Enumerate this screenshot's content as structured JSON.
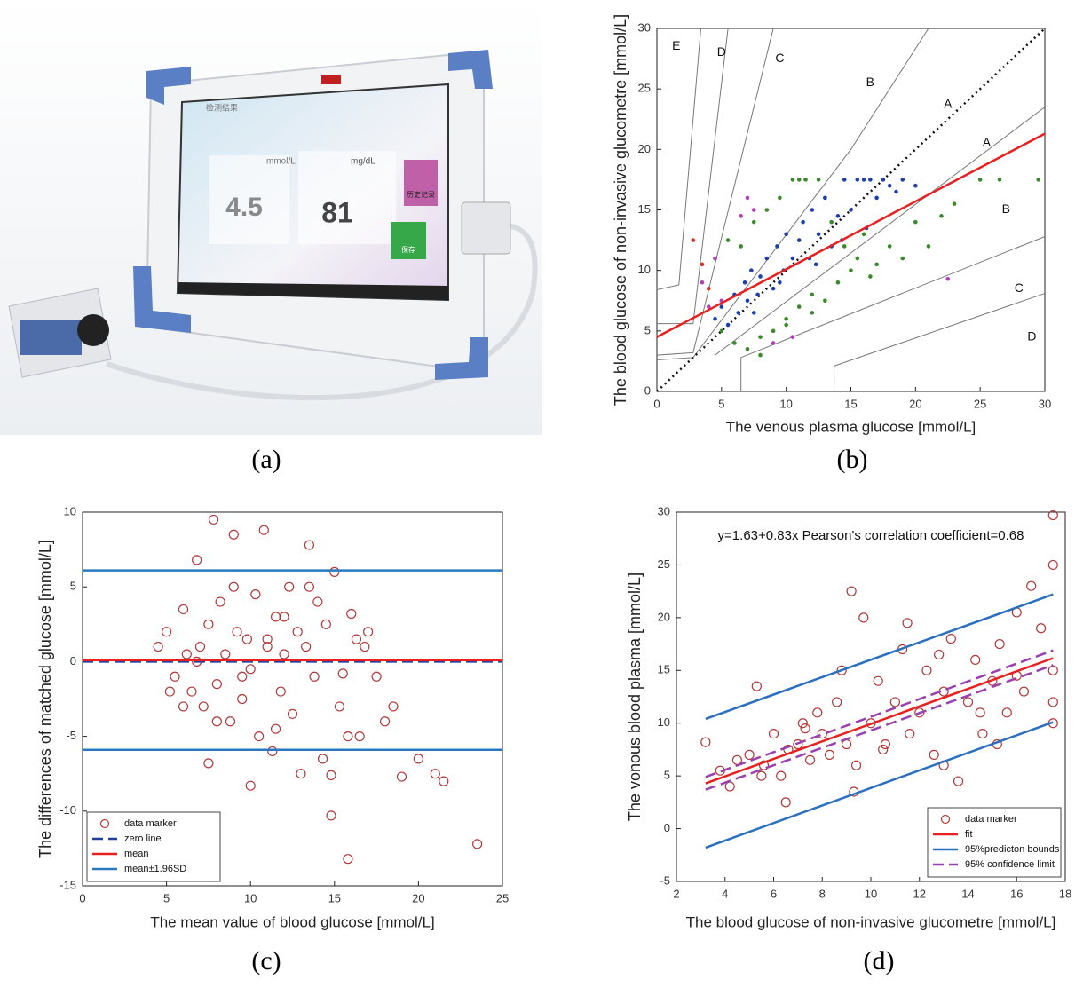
{
  "panel_labels": [
    "(a)",
    "(b)",
    "(c)",
    "(d)"
  ],
  "photo": {
    "screen_title": "检测结果",
    "unit_1": "mmol/L",
    "reading_1": "4.5",
    "unit_2": "mg/dL",
    "reading_2": "81",
    "button_1": "历史记录",
    "button_2": "保存"
  },
  "chart_data": [
    {
      "type": "scatter",
      "x_label": "The venous plasma glucose [mmol/L]",
      "y_label": "The blood glucose of non-invasive glucometre [mmol/L]",
      "xlim": [
        0,
        30
      ],
      "ylim": [
        0,
        30
      ],
      "xticks": [
        0,
        5,
        10,
        15,
        20,
        25,
        30
      ],
      "yticks": [
        0,
        5,
        10,
        15,
        20,
        25,
        30
      ],
      "zone_labels": [
        "E",
        "D",
        "C",
        "B",
        "A",
        "A",
        "B",
        "C",
        "D"
      ],
      "series": [
        {
          "kind": "line",
          "color": "#111111",
          "dash": "dotted",
          "x": [
            0,
            30
          ],
          "values": [
            0,
            30
          ]
        },
        {
          "kind": "scatter",
          "marker": "filled",
          "color": "#3a8a2a",
          "x": [
            4.5,
            5,
            5.5,
            6,
            6.5,
            7,
            7.5,
            8,
            8.5,
            9,
            9.5,
            10,
            10.5,
            11,
            11.5,
            12,
            12.5,
            13,
            13.5,
            14,
            14.5,
            15,
            15.5,
            16,
            16.5,
            17,
            18,
            19,
            20,
            21,
            22,
            23,
            25,
            26.5,
            29.5,
            8,
            10,
            11,
            12,
            13
          ],
          "values": [
            11,
            5,
            12.5,
            4,
            12,
            3.5,
            14,
            4.5,
            15,
            5,
            16,
            6,
            17.5,
            7,
            17.5,
            8,
            17.5,
            7.5,
            14,
            9,
            12,
            10,
            11,
            13,
            9.5,
            10.5,
            12,
            11,
            14,
            12,
            14.5,
            15.5,
            17.5,
            17.5,
            17.5,
            3,
            5.5,
            17.5,
            6.5,
            16
          ]
        },
        {
          "kind": "scatter",
          "marker": "filled",
          "color": "#1f3fb0",
          "x": [
            4.5,
            5,
            5.5,
            6,
            6.3,
            6.8,
            7,
            7.3,
            7.8,
            8,
            8.5,
            9,
            9.3,
            9.8,
            10,
            10.5,
            11,
            11.3,
            11.8,
            12,
            12.5,
            13,
            13.5,
            14,
            14.5,
            15,
            15.5,
            16,
            16.5,
            17,
            17.5,
            18,
            19,
            20,
            7.5,
            9.5,
            12.3,
            14.3,
            16.2,
            18.5
          ],
          "values": [
            6,
            7,
            5.5,
            8,
            6.5,
            9,
            7.5,
            10,
            8,
            9.5,
            11,
            8.5,
            12,
            10,
            13,
            11,
            12.5,
            14,
            11,
            15,
            13,
            16,
            12,
            14.5,
            17.5,
            15,
            17.5,
            17.5,
            17.5,
            16,
            17.5,
            17,
            17.5,
            17,
            6.5,
            9,
            10.5,
            12.5,
            13.5,
            16.5
          ]
        },
        {
          "kind": "scatter",
          "marker": "filled",
          "color": "#b040b8",
          "x": [
            3.5,
            4,
            4.5,
            5,
            6.5,
            7,
            7.5,
            9,
            10.5,
            22.5
          ],
          "values": [
            9,
            7,
            11,
            7.5,
            14.5,
            16,
            15,
            4,
            4.5,
            9.3
          ]
        },
        {
          "kind": "scatter",
          "marker": "filled",
          "color": "#e03020",
          "x": [
            2.8,
            3.5,
            4
          ],
          "values": [
            12.5,
            10.5,
            8.5
          ]
        },
        {
          "kind": "line",
          "color": "#e82020",
          "x": [
            0,
            30
          ],
          "values": [
            4.5,
            21.3
          ]
        }
      ]
    },
    {
      "type": "scatter",
      "x_label": "The mean value of blood glucose [mmol/L]",
      "y_label": "The differences of matched glucose [mmol/L]",
      "xlim": [
        0,
        25
      ],
      "ylim": [
        -15,
        10
      ],
      "xticks": [
        0,
        5,
        10,
        15,
        20,
        25
      ],
      "yticks": [
        -15,
        -10,
        -5,
        0,
        5,
        10
      ],
      "legend": "lower left",
      "series": [
        {
          "kind": "scatter",
          "marker": "open",
          "name": "data marker",
          "color": "#b23a3a",
          "x": [
            5,
            5.5,
            6,
            6.2,
            6.5,
            6.8,
            7,
            7.2,
            7.5,
            7.8,
            8,
            8.2,
            8.5,
            8.8,
            9,
            9.2,
            9.5,
            9.8,
            10,
            10.3,
            10.5,
            10.8,
            11,
            11.3,
            11.5,
            11.8,
            12,
            12.3,
            12.5,
            12.8,
            13,
            13.3,
            13.5,
            13.8,
            14,
            14.3,
            14.5,
            14.8,
            15,
            15.3,
            15.5,
            15.8,
            16,
            16.3,
            16.5,
            16.8,
            17,
            17.5,
            18,
            18.5,
            19,
            20,
            21,
            21.5,
            23.5,
            15.8,
            14.8,
            8,
            9,
            11.5,
            12,
            6,
            7.5,
            10,
            13.5,
            4.5,
            5.2,
            6.8,
            11,
            9.5
          ],
          "values": [
            2,
            -1,
            3.5,
            0.5,
            -2,
            6.8,
            1,
            -3,
            2.5,
            9.5,
            -1.5,
            4,
            0.5,
            -4,
            8.5,
            2,
            -2.5,
            1.5,
            -0.5,
            4.5,
            -5,
            8.8,
            1,
            -6,
            3,
            -2,
            0.5,
            5,
            -3.5,
            2,
            -7.5,
            1,
            7.8,
            -1,
            4,
            -6.5,
            2.5,
            -10.3,
            6,
            -3,
            -0.8,
            -5,
            3.2,
            1.5,
            -5,
            1,
            2,
            -1,
            -4,
            -3,
            -7.7,
            -6.5,
            -7.5,
            -8,
            -12.2,
            -13.2,
            -7.6,
            -4,
            5,
            -4.5,
            3,
            -3,
            -6.8,
            -8.3,
            5,
            1,
            -2,
            0,
            1.5,
            -1
          ]
        },
        {
          "kind": "hline",
          "name": "zero line",
          "color": "#1f3f9a",
          "dash": "dashed",
          "values": [
            0
          ]
        },
        {
          "kind": "hline",
          "name": "mean",
          "color": "#e82020",
          "values": [
            0.1
          ]
        },
        {
          "kind": "hline",
          "name": "mean±1.96SD",
          "color": "#2a78c0",
          "values": [
            6.1,
            -5.9
          ]
        }
      ]
    },
    {
      "type": "scatter",
      "x_label": "The blood glucose of non-invasive glucometre [mmol/L]",
      "y_label": "The vonous blood plasma [mmol/L]",
      "annotation": "y=1.63+0.83x Pearson's correlation coefficient=0.68",
      "xlim": [
        2,
        18
      ],
      "ylim": [
        -5,
        30
      ],
      "xticks": [
        2,
        4,
        6,
        8,
        10,
        12,
        14,
        16,
        18
      ],
      "yticks": [
        -5,
        0,
        5,
        10,
        15,
        20,
        25,
        30
      ],
      "legend": "lower right",
      "series": [
        {
          "kind": "scatter",
          "marker": "open",
          "name": "data marker",
          "color": "#b23a3a",
          "x": [
            3.2,
            3.8,
            4.2,
            4.5,
            5,
            5.3,
            5.6,
            6,
            6.3,
            6.6,
            7,
            7.2,
            7.5,
            7.8,
            8,
            8.3,
            8.6,
            9,
            9.2,
            9.4,
            9.7,
            10,
            10.3,
            10.6,
            11,
            11.3,
            11.6,
            12,
            12.3,
            12.6,
            13,
            13.3,
            13.6,
            14,
            14.3,
            14.6,
            15,
            15.3,
            15.6,
            16,
            16.3,
            16.6,
            17,
            17.5,
            17.5,
            17.5,
            17.5,
            17.5,
            9.3,
            11.5,
            12.8,
            6.5,
            8.8,
            10.5,
            14.5,
            16,
            5.5,
            7.3,
            13,
            15.2
          ],
          "values": [
            8.2,
            5.5,
            4,
            6.5,
            7,
            13.5,
            6,
            9,
            5,
            7.5,
            8,
            10,
            6.5,
            11,
            9,
            7,
            12,
            8,
            22.5,
            6,
            20,
            10,
            14,
            8,
            12,
            17,
            9,
            11,
            15,
            7,
            13,
            18,
            4.5,
            12,
            16,
            9,
            14,
            17.5,
            11,
            20.5,
            13,
            23,
            19,
            29.7,
            25,
            12,
            15,
            10,
            3.5,
            19.5,
            16.5,
            2.5,
            15,
            7.5,
            11,
            14.5,
            5,
            9.5,
            6,
            8
          ]
        },
        {
          "kind": "line",
          "name": "fit",
          "color": "#e82020",
          "x": [
            3.2,
            17.5
          ],
          "values": [
            4.29,
            16.16
          ]
        },
        {
          "kind": "bounds",
          "name": "95%predicton bounds",
          "color": "#2a6fc0",
          "x": [
            3.2,
            17.5
          ],
          "upper": [
            10.4,
            22.2
          ],
          "lower": [
            -1.8,
            10.1
          ]
        },
        {
          "kind": "bounds",
          "name": "95% confidence limit",
          "color": "#9a40b0",
          "dash": "dashed",
          "x": [
            3.2,
            17.5
          ],
          "upper": [
            4.9,
            16.9
          ],
          "lower": [
            3.7,
            15.5
          ]
        }
      ]
    }
  ]
}
